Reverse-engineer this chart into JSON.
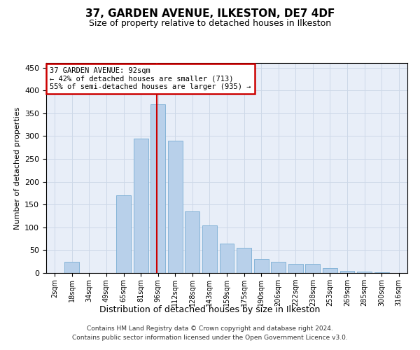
{
  "title": "37, GARDEN AVENUE, ILKESTON, DE7 4DF",
  "subtitle": "Size of property relative to detached houses in Ilkeston",
  "xlabel": "Distribution of detached houses by size in Ilkeston",
  "ylabel": "Number of detached properties",
  "footer_line1": "Contains HM Land Registry data © Crown copyright and database right 2024.",
  "footer_line2": "Contains public sector information licensed under the Open Government Licence v3.0.",
  "categories": [
    "2sqm",
    "18sqm",
    "34sqm",
    "49sqm",
    "65sqm",
    "81sqm",
    "96sqm",
    "112sqm",
    "128sqm",
    "143sqm",
    "159sqm",
    "175sqm",
    "190sqm",
    "206sqm",
    "222sqm",
    "238sqm",
    "253sqm",
    "269sqm",
    "285sqm",
    "300sqm",
    "316sqm"
  ],
  "values": [
    0,
    25,
    0,
    0,
    170,
    295,
    370,
    290,
    135,
    105,
    65,
    55,
    30,
    25,
    20,
    20,
    10,
    5,
    3,
    2,
    0
  ],
  "bar_color": "#b8d0ea",
  "bar_edge_color": "#7aadd4",
  "grid_color": "#cdd8e8",
  "bg_color": "#e8eef8",
  "annotation_text": "37 GARDEN AVENUE: 92sqm\n← 42% of detached houses are smaller (713)\n55% of semi-detached houses are larger (935) →",
  "annotation_box_color": "#ffffff",
  "annotation_border_color": "#cc0000",
  "vline_x_index": 6,
  "vline_color": "#cc0000",
  "ylim": [
    0,
    460
  ],
  "yticks": [
    0,
    50,
    100,
    150,
    200,
    250,
    300,
    350,
    400,
    450
  ]
}
